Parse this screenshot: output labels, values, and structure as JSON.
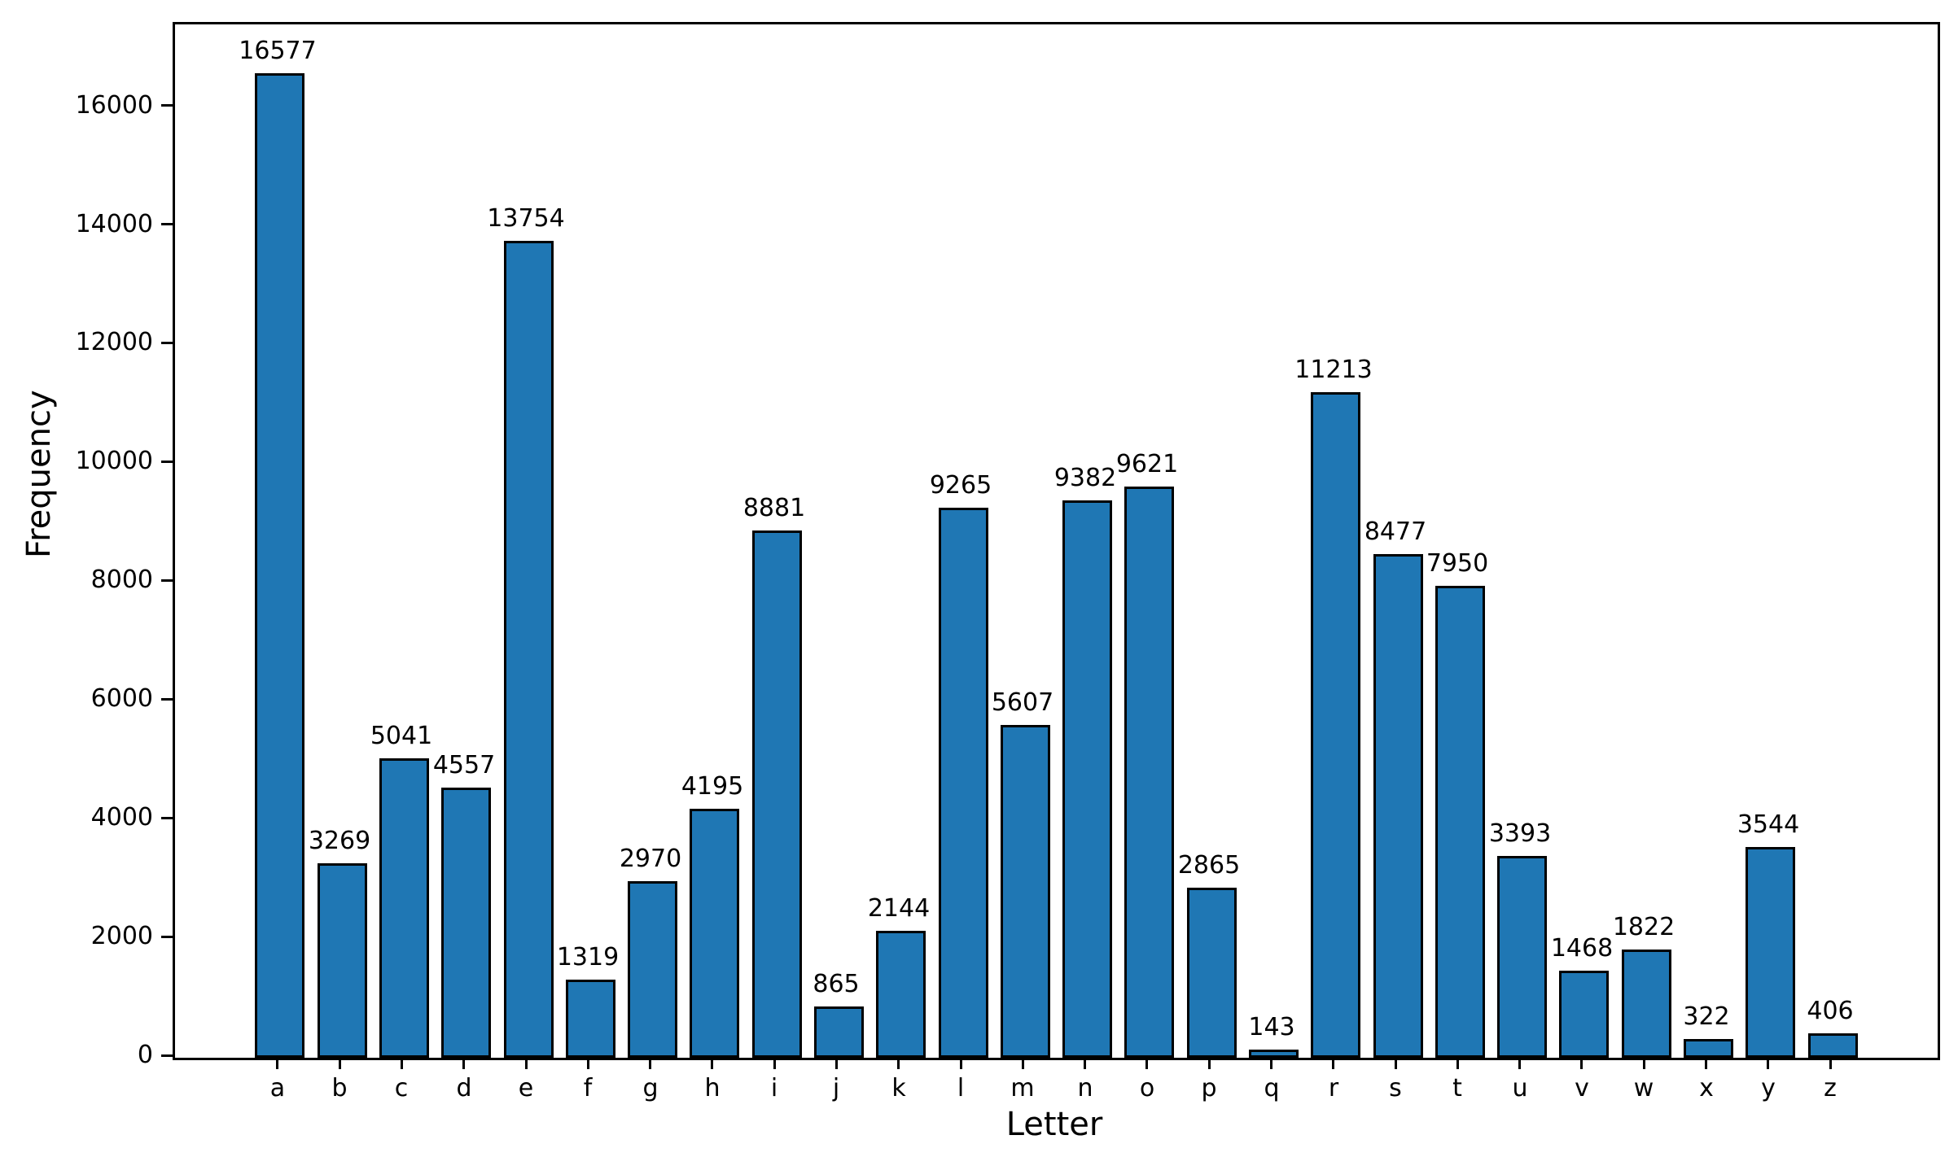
{
  "chart_data": {
    "type": "bar",
    "title": "",
    "xlabel": "Letter",
    "ylabel": "Frequency",
    "categories": [
      "a",
      "b",
      "c",
      "d",
      "e",
      "f",
      "g",
      "h",
      "i",
      "j",
      "k",
      "l",
      "m",
      "n",
      "o",
      "p",
      "q",
      "r",
      "s",
      "t",
      "u",
      "v",
      "w",
      "x",
      "y",
      "z"
    ],
    "values": [
      16577,
      3269,
      5041,
      4557,
      13754,
      1319,
      2970,
      4195,
      8881,
      865,
      2144,
      9265,
      5607,
      9382,
      9621,
      2865,
      143,
      11213,
      8477,
      7950,
      3393,
      1468,
      1822,
      322,
      3544,
      406
    ],
    "value_labels": [
      "16577",
      "3269",
      "5041",
      "4557",
      "13754",
      "1319",
      "2970",
      "4195",
      "8881",
      "865",
      "2144",
      "9265",
      "5607",
      "9382",
      "9621",
      "2865",
      "143",
      "11213",
      "8477",
      "7950",
      "3393",
      "1468",
      "1822",
      "322",
      "3544",
      "406"
    ],
    "yticks": [
      0,
      2000,
      4000,
      6000,
      8000,
      10000,
      12000,
      14000,
      16000
    ],
    "ytick_labels": [
      "0",
      "2000",
      "4000",
      "6000",
      "8000",
      "10000",
      "12000",
      "14000",
      "16000"
    ],
    "ylim": [
      0,
      17406
    ],
    "bar_color": "#1f77b4",
    "edge_color": "#000000",
    "grid": false,
    "legend": null,
    "value_labels_shown": true
  }
}
